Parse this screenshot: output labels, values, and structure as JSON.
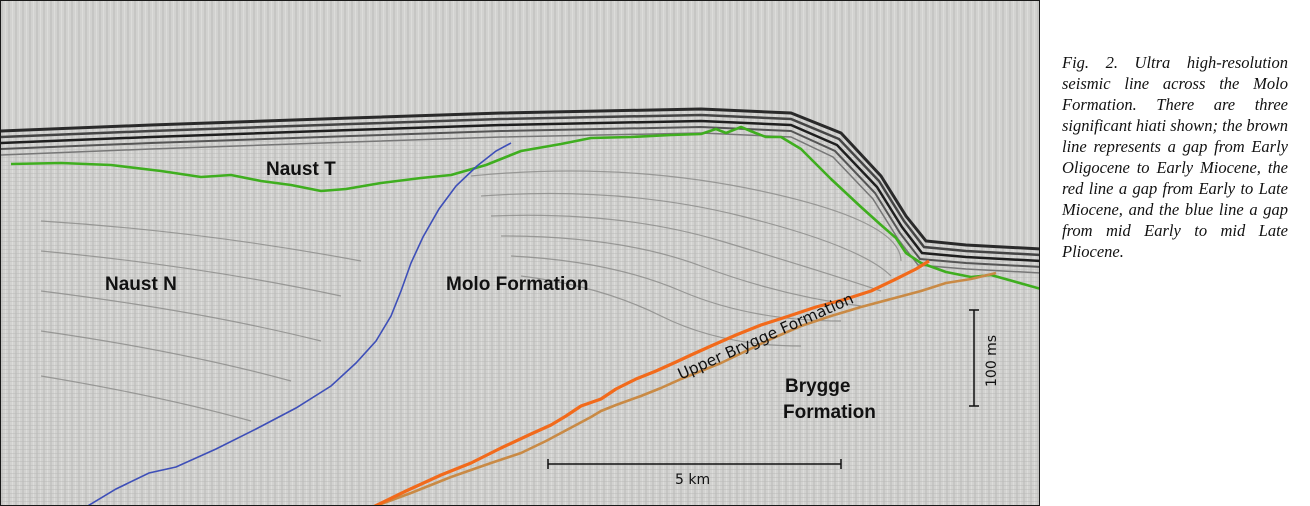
{
  "figure": {
    "labels": {
      "naust_t": "Naust T",
      "naust_n": "Naust N",
      "molo": "Molo Formation",
      "upper_brygge": "Upper Brygge Formation",
      "brygge_line1": "Brygge",
      "brygge_line2": "Formation"
    },
    "scales": {
      "horizontal": "5 km",
      "vertical": "100 ms"
    },
    "line_colors": {
      "green": "#3fae1f",
      "blue": "#3e4fb8",
      "red": "#f26a1b",
      "brown": "#c98a45"
    }
  },
  "caption": {
    "text": "Fig. 2. Ultra high-resolution seismic line across the Molo Formation. There are three significant hiati shown; the brown line represents a gap from Early Oligocene to Early Miocene, the red line a gap from Early to Late Miocene, and the blue line a gap from mid Early to mid Late Pliocene."
  }
}
